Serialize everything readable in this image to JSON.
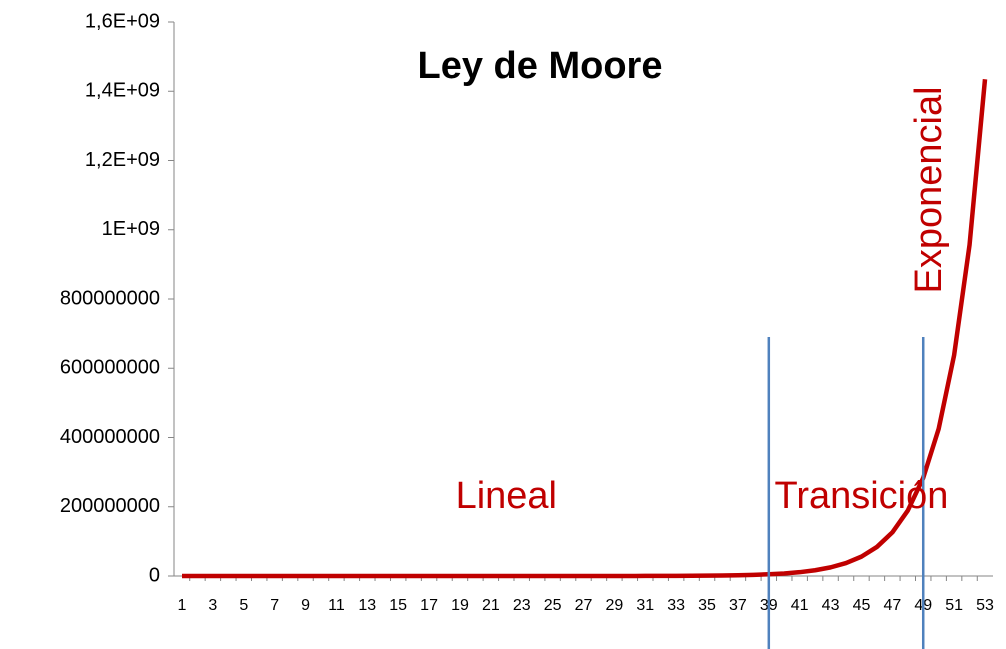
{
  "chart_data": {
    "type": "line",
    "title": "Ley de Moore",
    "categories": [
      1,
      null,
      3,
      null,
      5,
      null,
      7,
      null,
      9,
      null,
      11,
      null,
      13,
      null,
      15,
      null,
      17,
      null,
      19,
      null,
      21,
      null,
      23,
      null,
      25,
      null,
      27,
      null,
      29,
      null,
      31,
      null,
      33,
      null,
      35,
      null,
      37,
      null,
      39,
      null,
      41,
      null,
      43,
      null,
      45,
      null,
      47,
      null,
      49,
      null,
      51,
      null,
      53
    ],
    "series": [
      {
        "name": null,
        "color": "#c00000",
        "values": [
          1,
          1.5,
          2.25,
          3.375,
          5.0625,
          7.59,
          11.39,
          17.09,
          25.63,
          38.44,
          57.67,
          86.5,
          129.7,
          194.6,
          291.9,
          437.9,
          656.8,
          985.3,
          1478,
          2217,
          3325,
          4988,
          7482,
          11223,
          16834,
          25251,
          37877,
          56815,
          85223,
          127834,
          191751,
          287627,
          431440,
          647160,
          970740,
          1456110,
          2184164,
          3276247,
          4914370,
          7371555,
          11057332,
          16585998,
          24878997,
          37318496,
          55977744,
          83966616,
          125949924,
          188924886,
          283387329,
          425080994,
          637621491,
          956432236,
          1434648354
        ]
      }
    ],
    "ylim": [
      0,
      1600000000
    ],
    "yticks": [
      0,
      200000000,
      400000000,
      600000000,
      800000000,
      {
        "value": 1000000000,
        "label": "1E+09"
      },
      {
        "value": 1200000000,
        "label": "1,2E+09"
      },
      {
        "value": 1400000000,
        "label": "1,4E+09"
      },
      {
        "value": 1600000000,
        "label": "1,6E+09"
      }
    ],
    "vlines": {
      "color": "#4f81bd",
      "x": [
        39,
        49
      ]
    },
    "annotations": [
      {
        "text": "Lineal",
        "x": 22
      },
      {
        "text": "Transición",
        "x": 45
      },
      {
        "text": "Exponencial",
        "x": 49.5,
        "rotate": true
      }
    ],
    "annotation_color": "#c00000"
  }
}
